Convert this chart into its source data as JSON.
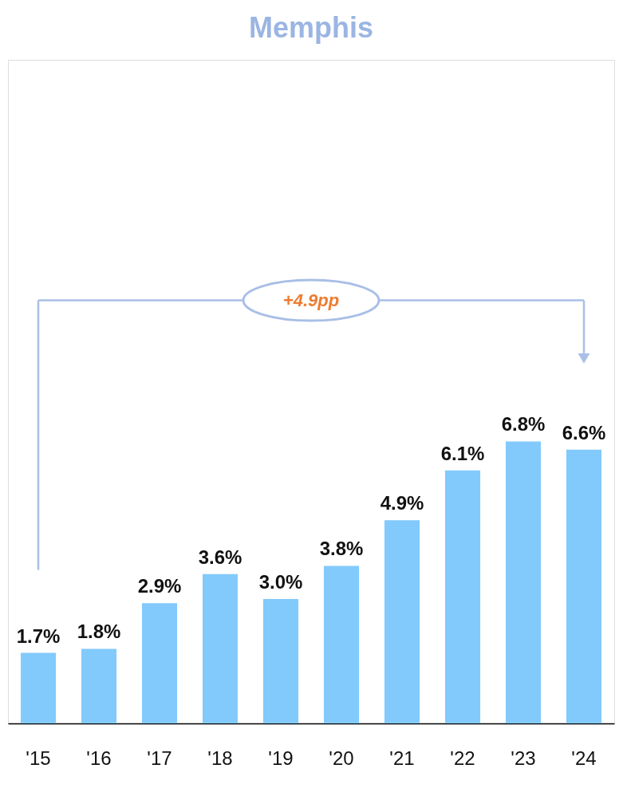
{
  "chart_data": {
    "type": "bar",
    "title": "Memphis",
    "categories": [
      "'15",
      "'16",
      "'17",
      "'18",
      "'19",
      "'20",
      "'21",
      "'22",
      "'23",
      "'24"
    ],
    "values": [
      1.7,
      1.8,
      2.9,
      3.6,
      3.0,
      3.8,
      4.9,
      6.1,
      6.8,
      6.6
    ],
    "color": "#82cafc",
    "value_labels": [
      "1.7%",
      "1.8%",
      "2.9%",
      "3.6%",
      "3.0%",
      "3.8%",
      "4.9%",
      "6.1%",
      "6.8%",
      "6.6%"
    ],
    "annotations": [
      "+4.9pp"
    ],
    "ylim": [
      0,
      16
    ],
    "tick_labels": "x",
    "grid": false,
    "legend": false
  }
}
